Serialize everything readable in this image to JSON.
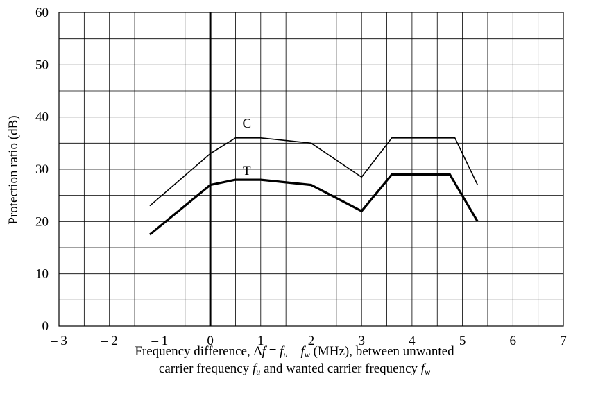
{
  "chart_data": {
    "type": "line",
    "ylabel": "Protection ratio (dB)",
    "xlabel": {
      "line1": {
        "prefix": "Frequency difference, ",
        "delta": "Δ",
        "f": "f",
        "eq": " = ",
        "fu_main": "f",
        "fu_sub": "u",
        "minus": " – ",
        "fw_main": "f",
        "fw_sub": "w",
        "suffix": " (MHz), between unwanted"
      },
      "line2": {
        "prefix": "carrier frequency ",
        "fu_main": "f",
        "fu_sub": "u",
        "mid": " and wanted carrier frequency ",
        "fw_main": "f",
        "fw_sub": "w"
      }
    },
    "xlim": [
      -3,
      7
    ],
    "ylim": [
      0,
      60
    ],
    "x_ticks": [
      -3,
      -2,
      -1,
      0,
      1,
      2,
      3,
      4,
      5,
      6,
      7
    ],
    "x_tick_labels": [
      "– 3",
      "– 2",
      "– 1",
      "0",
      "1",
      "2",
      "3",
      "4",
      "5",
      "6",
      "7"
    ],
    "y_ticks": [
      0,
      10,
      20,
      30,
      40,
      50,
      60
    ],
    "y_tick_labels": [
      "0",
      "10",
      "20",
      "30",
      "40",
      "50",
      "60"
    ],
    "grid": true,
    "x_grid_step": 0.5,
    "y_grid_step": 5,
    "reference_line_x": 0,
    "series": [
      {
        "name": "C",
        "line_style": "thin",
        "label_at": [
          1.0,
          39.0
        ],
        "x": [
          -1.2,
          0,
          0.5,
          1.0,
          2.0,
          3.0,
          3.6,
          4.85,
          5.3
        ],
        "y": [
          23.0,
          33.0,
          36.0,
          36.0,
          35.0,
          28.5,
          36.0,
          36.0,
          27.0
        ]
      },
      {
        "name": "T",
        "line_style": "thick",
        "label_at": [
          1.0,
          30.0
        ],
        "x": [
          -1.2,
          0,
          0.5,
          1.0,
          2.0,
          3.0,
          3.6,
          4.75,
          5.3
        ],
        "y": [
          17.5,
          27.0,
          28.0,
          28.0,
          27.0,
          22.0,
          29.0,
          29.0,
          20.0
        ]
      }
    ]
  }
}
